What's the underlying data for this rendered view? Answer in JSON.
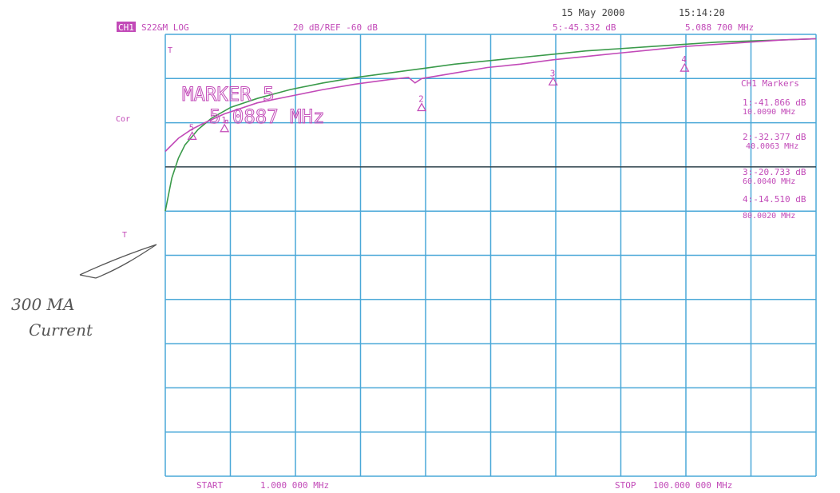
{
  "header": {
    "date": "15 May 2000",
    "time": "15:14:20",
    "channel_badge": "CH1",
    "measurement": "S22&M LOG",
    "scale": "20 dB/REF -60 dB",
    "marker_readout": "5:-45.332 dB",
    "marker_freq": "5.088 700 MHz"
  },
  "big_marker": {
    "title": "MARKER 5",
    "freq": "5.0887 MHz"
  },
  "left_labels": {
    "cor": "Cor",
    "ref_top": "T",
    "ref_mid": "T"
  },
  "marker_list": {
    "title": "CH1 Markers",
    "items": [
      {
        "value": "1:-41.866 dB",
        "freq": "10.0090 MHz"
      },
      {
        "value": "2:-32.377 dB",
        "freq": "40.0063 MHz"
      },
      {
        "value": "3:-20.733 dB",
        "freq": "60.0040 MHz"
      },
      {
        "value": "4:-14.510 dB",
        "freq": "80.0020 MHz"
      }
    ]
  },
  "footer": {
    "start": "START",
    "start_value": "1.000 000 MHz",
    "stop": "STOP",
    "stop_value": "100.000 000 MHz"
  },
  "annotation": {
    "line1": "300 MA",
    "line2": "Current"
  },
  "colors": {
    "grid": "#4aa8d8",
    "green": "#3a9a4a",
    "magenta": "#c24ab8",
    "text": "#c24ab8",
    "ref": "#333333"
  },
  "chart_data": {
    "type": "line",
    "xlim": [
      1,
      100
    ],
    "ylim": [
      -200,
      0
    ],
    "x_divisions": 10,
    "y_divisions": 10,
    "grid": true,
    "reference_level": -60,
    "series": [
      {
        "color": "#3a9a4a",
        "x": [
          1,
          2,
          3,
          4,
          6,
          8,
          11,
          15,
          20,
          25,
          30,
          35,
          40,
          45,
          50,
          55,
          60,
          65,
          70,
          75,
          80,
          85,
          90,
          95,
          100
        ],
        "y": [
          -80,
          -65,
          -56,
          -50,
          -43,
          -38,
          -33,
          -29,
          -25,
          -22,
          -19.5,
          -17.5,
          -15.5,
          -13.5,
          -12,
          -10.5,
          -9,
          -7.5,
          -6.5,
          -5.5,
          -4.5,
          -3.5,
          -3,
          -2.5,
          -2
        ]
      },
      {
        "color": "#c24ab8",
        "x": [
          1,
          3,
          5,
          7,
          10,
          15,
          20,
          25,
          30,
          35,
          38,
          39,
          40,
          45,
          50,
          55,
          60,
          65,
          70,
          75,
          80,
          85,
          90,
          95,
          100
        ],
        "y": [
          -53,
          -47,
          -43,
          -40,
          -36,
          -31,
          -28,
          -25,
          -22.5,
          -20.5,
          -19.5,
          -22,
          -20,
          -17.5,
          -15,
          -13.5,
          -11.5,
          -10,
          -8.5,
          -7,
          -5.5,
          -4.5,
          -3.5,
          -2.5,
          -2
        ]
      }
    ],
    "markers": [
      {
        "label": "5",
        "x": 5.09,
        "y": -45.332
      },
      {
        "label": "1",
        "x": 10.009,
        "y": -41.866
      },
      {
        "label": "2",
        "x": 40.0063,
        "y": -32.377
      },
      {
        "label": "3",
        "x": 60.004,
        "y": -20.733
      },
      {
        "label": "4",
        "x": 80.002,
        "y": -14.51
      }
    ]
  }
}
